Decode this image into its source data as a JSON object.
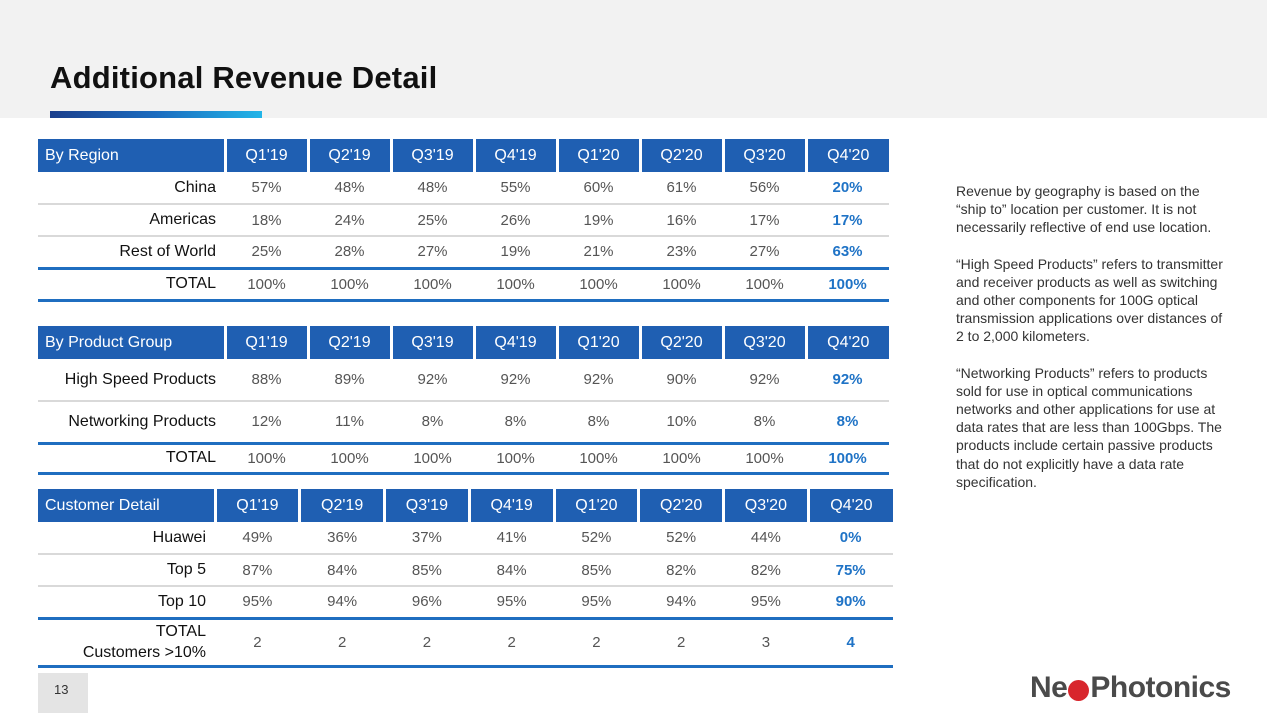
{
  "title": "Additional Revenue Detail",
  "page_number": "13",
  "logo": {
    "part1": "Ne",
    "part2": "Photonics"
  },
  "quarters": [
    "Q1'19",
    "Q2'19",
    "Q3'19",
    "Q4'19",
    "Q1'20",
    "Q2'20",
    "Q3'20",
    "Q4'20"
  ],
  "region_table": {
    "header": "By Region",
    "rows": [
      {
        "label": "China",
        "values": [
          "57%",
          "48%",
          "48%",
          "55%",
          "60%",
          "61%",
          "56%",
          "20%"
        ]
      },
      {
        "label": "Americas",
        "values": [
          "18%",
          "24%",
          "25%",
          "26%",
          "19%",
          "16%",
          "17%",
          "17%"
        ]
      },
      {
        "label": "Rest of World",
        "values": [
          "25%",
          "28%",
          "27%",
          "19%",
          "21%",
          "23%",
          "27%",
          "63%"
        ]
      },
      {
        "label": "TOTAL",
        "values": [
          "100%",
          "100%",
          "100%",
          "100%",
          "100%",
          "100%",
          "100%",
          "100%"
        ]
      }
    ]
  },
  "product_table": {
    "header": "By Product Group",
    "rows": [
      {
        "label": "High Speed Products",
        "values": [
          "88%",
          "89%",
          "92%",
          "92%",
          "92%",
          "90%",
          "92%",
          "92%"
        ]
      },
      {
        "label": "Networking Products",
        "values": [
          "12%",
          "11%",
          "8%",
          "8%",
          "8%",
          "10%",
          "8%",
          "8%"
        ]
      },
      {
        "label": "TOTAL",
        "values": [
          "100%",
          "100%",
          "100%",
          "100%",
          "100%",
          "100%",
          "100%",
          "100%"
        ]
      }
    ]
  },
  "customer_table": {
    "header": "Customer Detail",
    "rows": [
      {
        "label": "Huawei",
        "values": [
          "49%",
          "36%",
          "37%",
          "41%",
          "52%",
          "52%",
          "44%",
          "0%"
        ]
      },
      {
        "label": "Top 5",
        "values": [
          "87%",
          "84%",
          "85%",
          "84%",
          "85%",
          "82%",
          "82%",
          "75%"
        ]
      },
      {
        "label": "Top 10",
        "values": [
          "95%",
          "94%",
          "96%",
          "95%",
          "95%",
          "94%",
          "95%",
          "90%"
        ]
      },
      {
        "label": "TOTAL Customers >10%",
        "values": [
          "2",
          "2",
          "2",
          "2",
          "2",
          "2",
          "3",
          "4"
        ]
      }
    ]
  },
  "notes": [
    "Revenue by geography is based on the “ship to” location per customer.  It is not necessarily reflective of end use location.",
    "“High Speed Products” refers to transmitter and receiver products as well as switching and other components for 100G optical transmission applications over distances of 2 to 2,000 kilometers.",
    "“Networking Products” refers to products sold for use in optical communications networks and other applications for use at data rates that are less than 100Gbps.  The products include certain passive products that do not explicitly have a data rate specification."
  ]
}
